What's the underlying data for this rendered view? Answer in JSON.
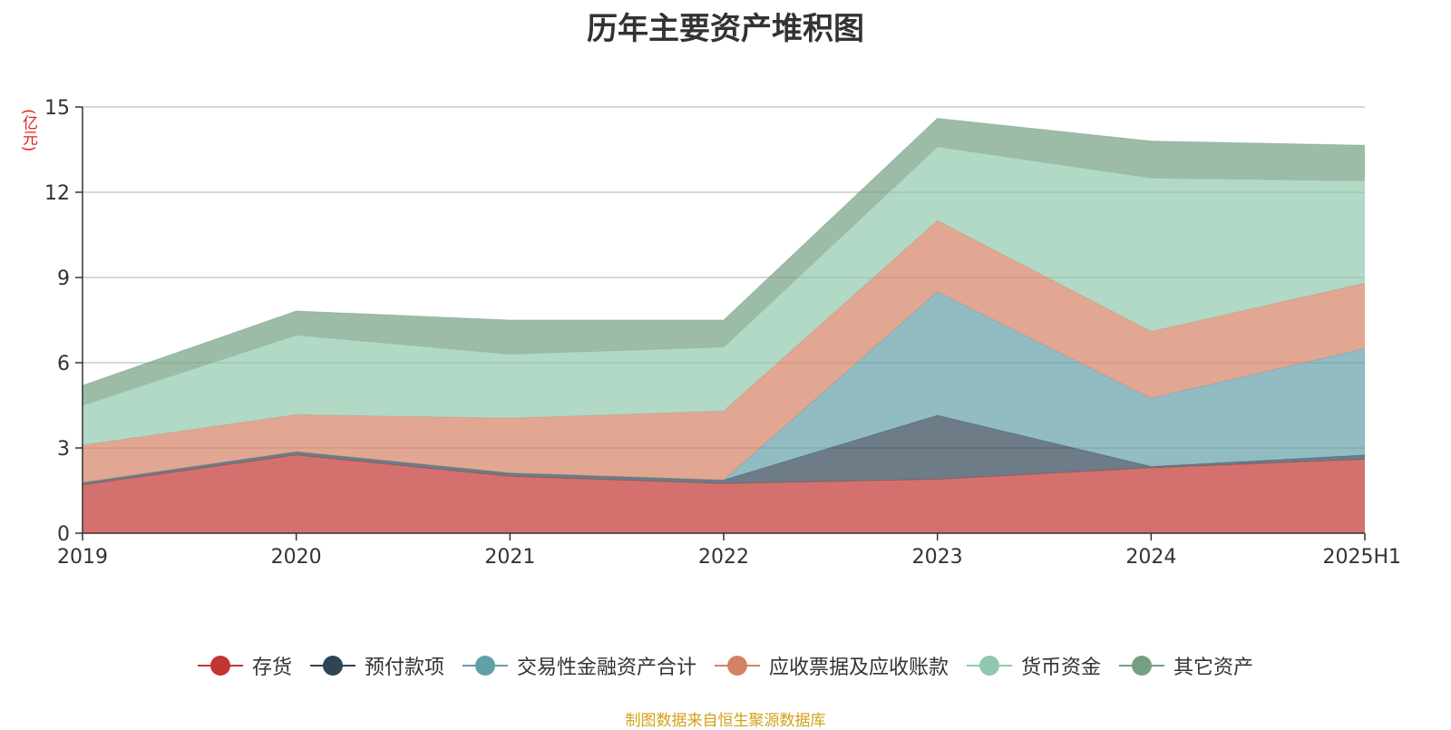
{
  "title": "历年主要资产堆积图",
  "unit_label": "(亿元)",
  "source": "制图数据来自恒生聚源数据库",
  "chart_data": {
    "type": "area",
    "stacked": true,
    "title": "历年主要资产堆积图",
    "ylabel": "(亿元)",
    "categories": [
      "2019",
      "2020",
      "2021",
      "2022",
      "2023",
      "2024",
      "2025H1"
    ],
    "ylim": [
      0,
      15
    ],
    "yticks": [
      0,
      3,
      6,
      9,
      12,
      15
    ],
    "grid": true,
    "legend_position": "bottom",
    "series": [
      {
        "name": "存货",
        "color": "#c23531",
        "values": [
          1.7,
          2.75,
          2.0,
          1.75,
          1.9,
          2.3,
          2.6
        ]
      },
      {
        "name": "预付款项",
        "color": "#2f4554",
        "values": [
          0.08,
          0.12,
          0.12,
          0.12,
          2.25,
          0.05,
          0.15
        ]
      },
      {
        "name": "交易性金融资产合计",
        "color": "#61a0a8",
        "values": [
          0.0,
          0.0,
          0.0,
          0.0,
          4.35,
          2.4,
          3.75
        ]
      },
      {
        "name": "应收票据及应收账款",
        "color": "#d48265",
        "values": [
          1.32,
          1.3,
          1.93,
          2.43,
          2.5,
          2.35,
          2.3
        ]
      },
      {
        "name": "货币资金",
        "color": "#91c7ae",
        "values": [
          1.4,
          2.8,
          2.25,
          2.25,
          2.6,
          5.4,
          3.6
        ]
      },
      {
        "name": "其它资产",
        "color": "#749f83",
        "values": [
          0.7,
          0.85,
          1.2,
          0.95,
          1.0,
          1.3,
          1.25
        ]
      }
    ]
  }
}
